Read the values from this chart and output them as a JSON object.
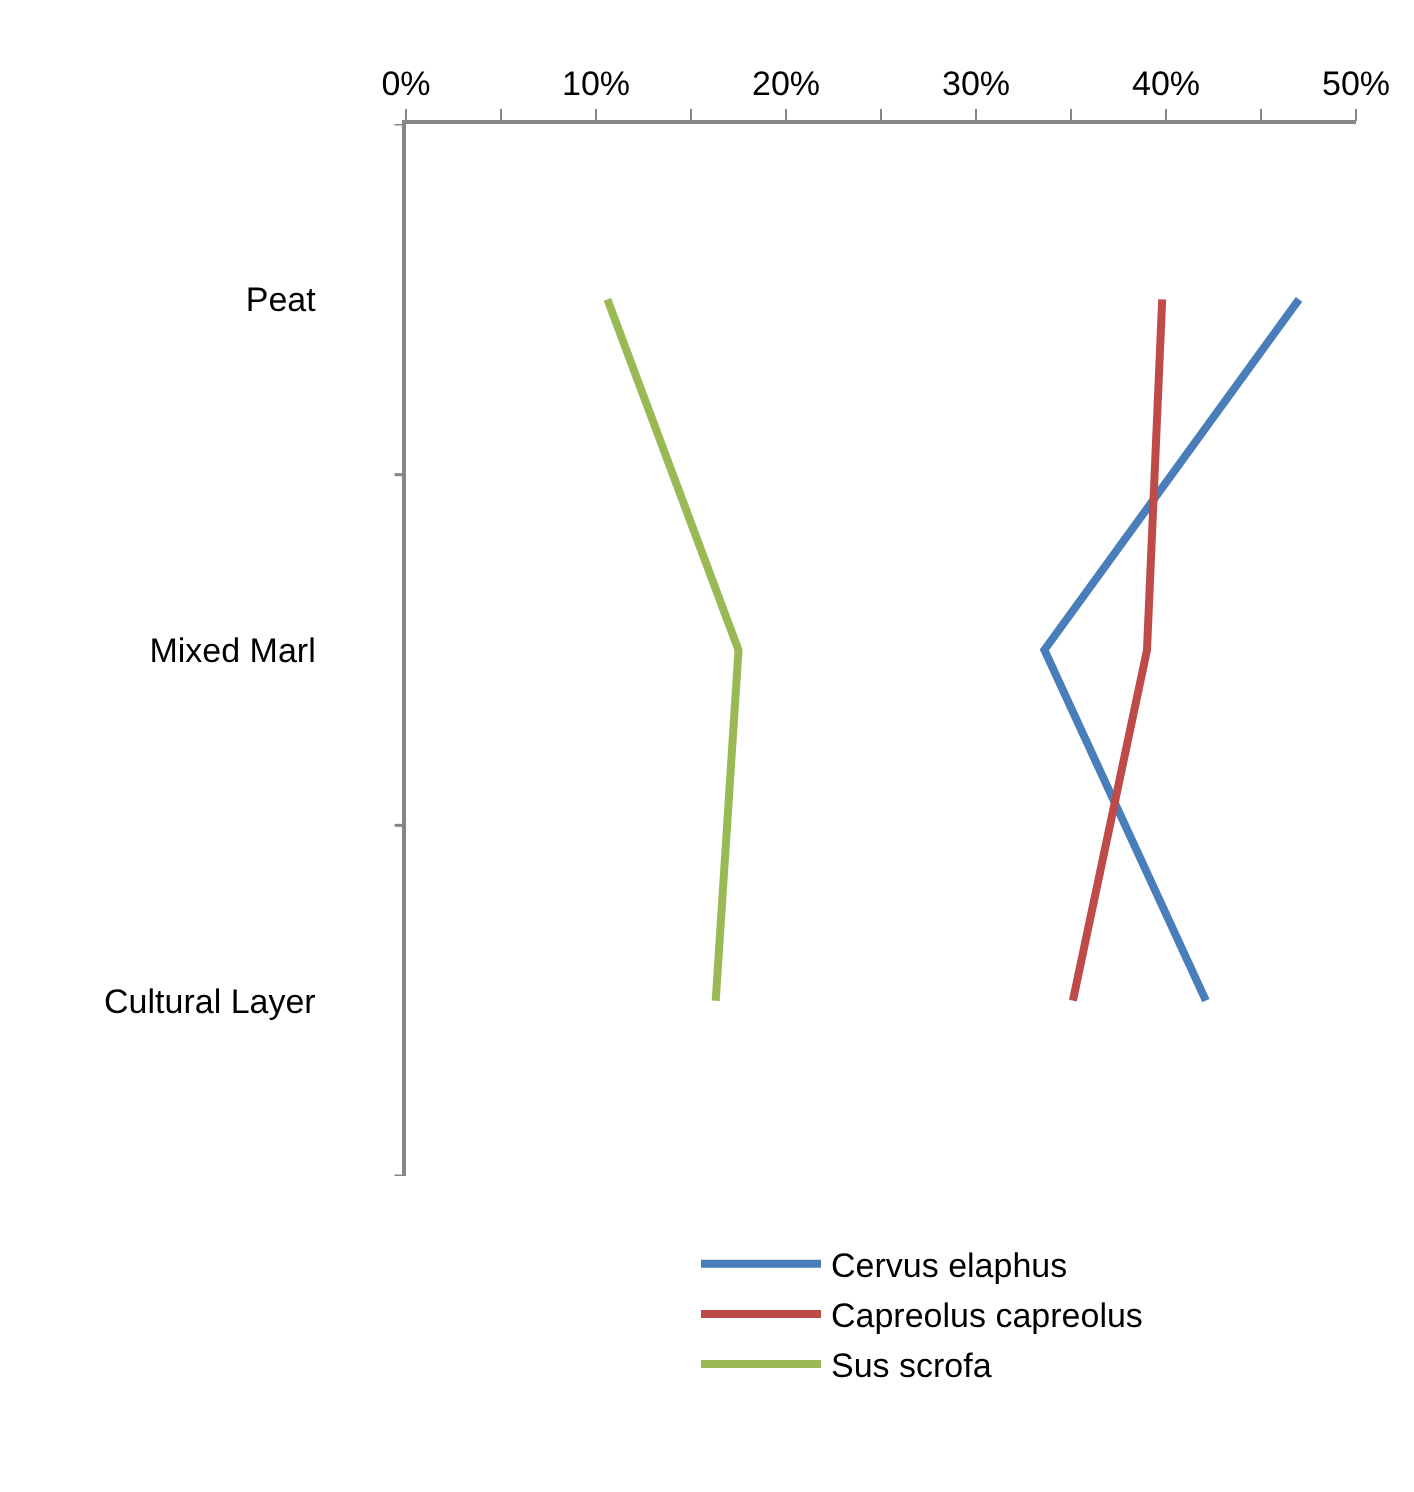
{
  "chart_data": {
    "type": "line",
    "orientation": "horizontal",
    "categories": [
      "Peat",
      "Mixed Marl",
      "Cultural Layer"
    ],
    "series": [
      {
        "name": "Cervus elaphus",
        "color": "#4a7ebb",
        "values": [
          47.0,
          33.6,
          42.1
        ]
      },
      {
        "name": "Capreolus capreolus",
        "color": "#be4b48",
        "values": [
          39.8,
          39.0,
          35.1
        ]
      },
      {
        "name": "Sus scrofa",
        "color": "#98b954",
        "values": [
          10.6,
          17.5,
          16.3
        ]
      }
    ],
    "xlim": [
      0,
      50
    ],
    "xticks": [
      {
        "value": 0,
        "label": "0%"
      },
      {
        "value": 5,
        "label": null
      },
      {
        "value": 10,
        "label": "10%"
      },
      {
        "value": 15,
        "label": null
      },
      {
        "value": 20,
        "label": "20%"
      },
      {
        "value": 25,
        "label": null
      },
      {
        "value": 30,
        "label": "30%"
      },
      {
        "value": 35,
        "label": null
      },
      {
        "value": 40,
        "label": "40%"
      },
      {
        "value": 45,
        "label": null
      },
      {
        "value": 50,
        "label": "50%"
      }
    ],
    "grid": false,
    "legend": "bottom",
    "marker": "none",
    "line_style": "solid"
  }
}
